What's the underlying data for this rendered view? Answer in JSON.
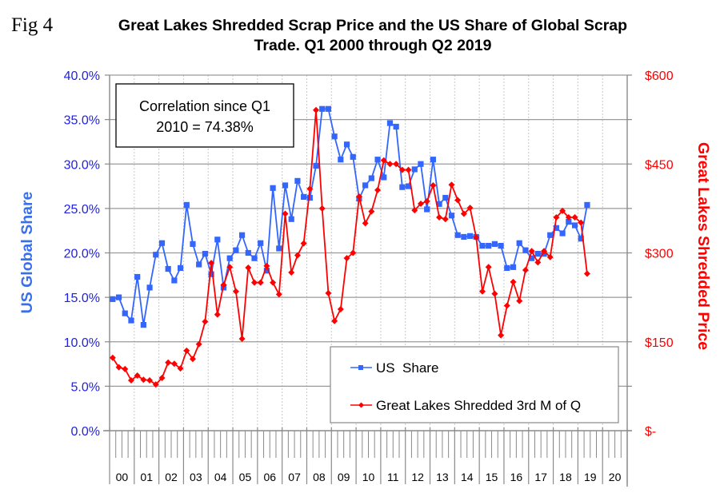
{
  "figure": {
    "label": "Fig 4",
    "title_line1": "Great Lakes Shredded Scrap Price and the US Share of Global Scrap",
    "title_line2": "Trade. Q1 2000 through Q2 2019"
  },
  "chart_data": {
    "type": "line",
    "title": "Great Lakes Shredded Scrap Price and the US Share of Global Scrap Trade. Q1 2000 through Q2 2019",
    "xlabel": "",
    "x_unit": "quarter",
    "x_start": "Q1 2000",
    "x_end": "Q2 2019",
    "x_categories": [
      "00",
      "01",
      "02",
      "03",
      "04",
      "05",
      "06",
      "07",
      "08",
      "09",
      "10",
      "11",
      "12",
      "13",
      "14",
      "15",
      "16",
      "17",
      "18",
      "19",
      "20"
    ],
    "quarters_per_category": 4,
    "ylabel_left": "US Global Share",
    "ylabel_right": "Great Lakes Shredded Price",
    "ylim_left": [
      0,
      40
    ],
    "ylim_right": [
      0,
      600
    ],
    "yticks_left": [
      "0.0%",
      "5.0%",
      "10.0%",
      "15.0%",
      "20.0%",
      "25.0%",
      "30.0%",
      "35.0%",
      "40.0%"
    ],
    "yticks_right": [
      "$-",
      "$150",
      "$300",
      "$450",
      "$600"
    ],
    "grid": "horizontal major gridlines; dotted vertical gridlines at year boundaries",
    "legend_position": "bottom-right",
    "annotation": {
      "line1": "Correlation since Q1",
      "line2": "2010 = 74.38%"
    },
    "series": [
      {
        "name": "US  Share",
        "axis": "left",
        "unit": "percent",
        "color": "#3366ff",
        "marker": "square",
        "values": [
          14.8,
          15.0,
          13.2,
          12.4,
          17.3,
          11.9,
          16.1,
          19.8,
          21.1,
          18.2,
          16.9,
          18.3,
          25.4,
          21.0,
          18.7,
          19.9,
          17.6,
          21.5,
          16.1,
          19.4,
          20.3,
          22.0,
          20.0,
          19.4,
          21.1,
          18.0,
          27.3,
          20.5,
          27.6,
          23.8,
          28.1,
          26.3,
          26.2,
          29.8,
          36.2,
          36.2,
          33.1,
          30.5,
          32.2,
          30.8,
          26.1,
          27.6,
          28.4,
          30.5,
          28.5,
          34.6,
          34.2,
          27.4,
          27.5,
          29.4,
          30.0,
          24.9,
          30.5,
          25.5,
          26.2,
          24.2,
          22.0,
          21.8,
          21.9,
          21.8,
          20.8,
          20.8,
          21.0,
          20.8,
          18.3,
          18.4,
          21.1,
          20.3,
          19.4,
          19.9,
          19.9,
          22.0,
          22.8,
          22.2,
          23.5,
          23.1,
          21.6,
          25.4
        ]
      },
      {
        "name": "Great Lakes Shredded 3rd M of Q",
        "axis": "right",
        "unit": "USD",
        "color": "#ff0000",
        "marker": "diamond",
        "values": [
          123,
          107,
          104,
          85,
          93,
          86,
          85,
          78,
          89,
          115,
          113,
          105,
          135,
          121,
          146,
          184,
          283,
          196,
          246,
          276,
          235,
          155,
          275,
          250,
          250,
          278,
          250,
          230,
          366,
          267,
          296,
          316,
          408,
          541,
          375,
          232,
          185,
          205,
          291,
          300,
          395,
          350,
          370,
          406,
          456,
          450,
          450,
          440,
          440,
          372,
          383,
          387,
          414,
          360,
          357,
          415,
          389,
          366,
          376,
          326,
          235,
          276,
          231,
          161,
          211,
          251,
          219,
          271,
          303,
          284,
          303,
          293,
          360,
          371,
          360,
          360,
          351,
          265
        ]
      }
    ]
  }
}
